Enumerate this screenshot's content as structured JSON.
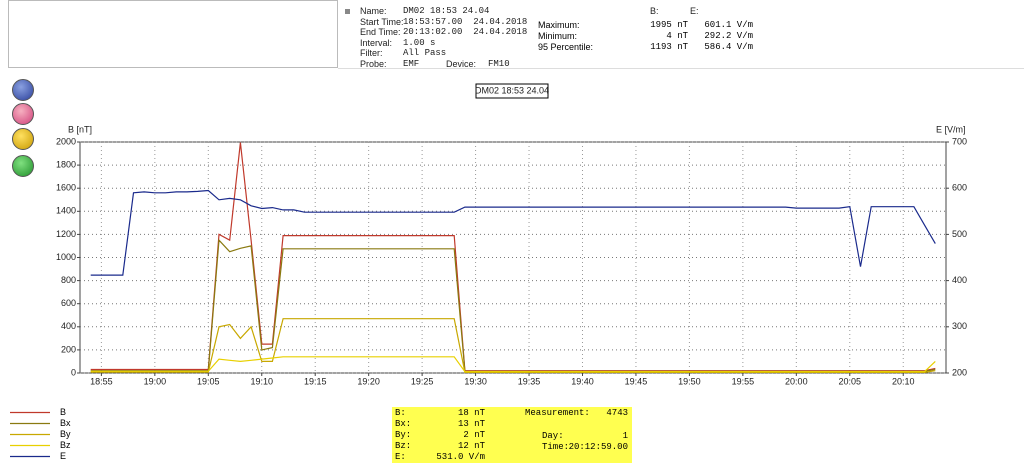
{
  "header": {
    "name_label": "Name:",
    "name": "DM02 18:53 24.04",
    "start_label": "Start Time:",
    "start": "18:53:57.00  24.04.2018",
    "end_label": "End Time:",
    "end": "20:13:02.00  24.04.2018",
    "interval_label": "Interval:",
    "interval": "1.00 s",
    "filter_label": "Filter:",
    "filter": "All Pass",
    "probe_label": "Probe:",
    "probe": "EMF",
    "device_label": "Device:",
    "device": "FM10"
  },
  "stats": {
    "col_b": "B:",
    "col_e": "E:",
    "rows": [
      [
        "Maximum:",
        "1995 nT",
        "601.1 V/m"
      ],
      [
        "Minimum:",
        "4 nT",
        "292.2 V/m"
      ],
      [
        "95 Percentile:",
        "1193 nT",
        "586.4 V/m"
      ]
    ]
  },
  "chart_data": {
    "type": "line",
    "title": "DM02 18:53 24.04",
    "y_label": "B [nT]",
    "y2_label": "E [V/m]",
    "xlim": [
      "18:53",
      "20:14"
    ],
    "xticks": [
      "18:55",
      "19:00",
      "19:05",
      "19:10",
      "19:15",
      "19:20",
      "19:25",
      "19:30",
      "19:35",
      "19:40",
      "19:45",
      "19:50",
      "19:55",
      "20:00",
      "20:05",
      "20:10"
    ],
    "ylim": [
      0,
      2000
    ],
    "yticks": [
      0,
      200,
      400,
      600,
      800,
      1000,
      1200,
      1400,
      1600,
      1800,
      2000
    ],
    "y2lim": [
      200,
      700
    ],
    "y2ticks": [
      200,
      300,
      400,
      500,
      600,
      700
    ],
    "grid": true,
    "x": [
      "18:54",
      "18:55",
      "18:56",
      "18:57",
      "18:58",
      "18:59",
      "19:00",
      "19:01",
      "19:02",
      "19:03",
      "19:04",
      "19:05",
      "19:06",
      "19:07",
      "19:08",
      "19:09",
      "19:10",
      "19:11",
      "19:12",
      "19:13",
      "19:14",
      "19:15",
      "19:16",
      "19:17",
      "19:18",
      "19:19",
      "19:20",
      "19:21",
      "19:22",
      "19:23",
      "19:24",
      "19:25",
      "19:26",
      "19:27",
      "19:28",
      "19:29",
      "19:30",
      "19:31",
      "19:32",
      "19:33",
      "19:34",
      "19:35",
      "19:36",
      "19:37",
      "19:38",
      "19:39",
      "19:40",
      "19:41",
      "19:42",
      "19:43",
      "19:44",
      "19:45",
      "19:46",
      "19:47",
      "19:48",
      "19:49",
      "19:50",
      "19:51",
      "19:52",
      "19:53",
      "19:54",
      "19:55",
      "19:56",
      "19:57",
      "19:58",
      "19:59",
      "20:00",
      "20:01",
      "20:02",
      "20:03",
      "20:04",
      "20:05",
      "20:06",
      "20:07",
      "20:08",
      "20:09",
      "20:10",
      "20:11",
      "20:12",
      "20:13"
    ],
    "series": [
      {
        "name": "B",
        "color": "#c0392b",
        "values": [
          30,
          30,
          30,
          30,
          30,
          30,
          30,
          30,
          30,
          30,
          30,
          30,
          1200,
          1150,
          1995,
          1150,
          250,
          250,
          1190,
          1190,
          1190,
          1190,
          1190,
          1190,
          1190,
          1190,
          1190,
          1190,
          1190,
          1190,
          1190,
          1190,
          1190,
          1190,
          1190,
          20,
          20,
          20,
          20,
          20,
          20,
          20,
          20,
          20,
          20,
          20,
          20,
          20,
          20,
          20,
          20,
          20,
          20,
          20,
          20,
          20,
          20,
          20,
          20,
          20,
          20,
          20,
          20,
          20,
          20,
          20,
          20,
          20,
          20,
          20,
          20,
          20,
          20,
          20,
          20,
          20,
          20,
          20,
          20,
          40
        ]
      },
      {
        "name": "Bx",
        "color": "#8a7a10",
        "values": [
          20,
          20,
          20,
          20,
          20,
          20,
          20,
          20,
          20,
          20,
          20,
          20,
          1150,
          1050,
          1080,
          1100,
          200,
          220,
          1075,
          1075,
          1075,
          1075,
          1075,
          1075,
          1075,
          1075,
          1075,
          1075,
          1075,
          1075,
          1075,
          1075,
          1075,
          1075,
          1075,
          15,
          15,
          15,
          15,
          15,
          15,
          15,
          15,
          15,
          15,
          15,
          15,
          15,
          15,
          15,
          15,
          15,
          15,
          15,
          15,
          15,
          15,
          15,
          15,
          15,
          15,
          15,
          15,
          15,
          15,
          15,
          15,
          15,
          15,
          15,
          15,
          15,
          15,
          15,
          15,
          15,
          15,
          15,
          15,
          30
        ]
      },
      {
        "name": "By",
        "color": "#c8a800",
        "values": [
          8,
          8,
          8,
          8,
          8,
          8,
          8,
          8,
          8,
          8,
          8,
          8,
          400,
          420,
          300,
          400,
          100,
          100,
          470,
          470,
          470,
          470,
          470,
          470,
          470,
          470,
          470,
          470,
          470,
          470,
          470,
          470,
          470,
          470,
          470,
          5,
          5,
          5,
          5,
          5,
          5,
          5,
          5,
          5,
          5,
          5,
          5,
          5,
          5,
          5,
          5,
          5,
          5,
          5,
          5,
          5,
          5,
          5,
          5,
          5,
          5,
          5,
          5,
          5,
          5,
          5,
          5,
          5,
          5,
          5,
          5,
          5,
          5,
          5,
          5,
          5,
          5,
          5,
          5,
          20
        ]
      },
      {
        "name": "Bz",
        "color": "#e8d000",
        "values": [
          15,
          15,
          15,
          15,
          15,
          15,
          15,
          15,
          15,
          15,
          15,
          15,
          120,
          110,
          100,
          110,
          120,
          130,
          140,
          140,
          140,
          140,
          140,
          140,
          140,
          140,
          140,
          140,
          140,
          140,
          140,
          140,
          140,
          140,
          140,
          12,
          12,
          12,
          12,
          12,
          12,
          12,
          12,
          12,
          12,
          12,
          12,
          12,
          12,
          12,
          12,
          12,
          12,
          12,
          12,
          12,
          12,
          12,
          12,
          12,
          12,
          12,
          12,
          12,
          12,
          12,
          12,
          12,
          12,
          12,
          12,
          12,
          12,
          12,
          12,
          12,
          12,
          12,
          12,
          100
        ]
      },
      {
        "name": "E",
        "color": "#1a2a8c",
        "axis": "y2",
        "values": [
          412,
          412,
          412,
          412,
          590,
          592,
          590,
          590,
          592,
          592,
          593,
          595,
          575,
          578,
          575,
          562,
          556,
          558,
          553,
          553,
          548,
          548,
          548,
          548,
          548,
          548,
          548,
          548,
          548,
          548,
          548,
          548,
          548,
          548,
          548,
          559,
          559,
          559,
          559,
          559,
          559,
          559,
          559,
          559,
          559,
          559,
          559,
          559,
          559,
          559,
          559,
          559,
          559,
          559,
          559,
          559,
          559,
          559,
          559,
          559,
          559,
          559,
          559,
          559,
          559,
          559,
          557,
          557,
          557,
          557,
          557,
          560,
          430,
          560,
          560,
          560,
          560,
          560,
          520,
          480
        ]
      }
    ]
  },
  "cursor": {
    "rows": [
      [
        "B:",
        "18 nT"
      ],
      [
        "Bx:",
        "13 nT"
      ],
      [
        "By:",
        "2 nT"
      ],
      [
        "Bz:",
        "12 nT"
      ],
      [
        "E:",
        "531.0 V/m"
      ]
    ],
    "measurement_label": "Measurement:",
    "measurement": "4743",
    "day_label": "Day:",
    "day": "1",
    "time_label": "Time:",
    "time": "20:12:59.00"
  }
}
